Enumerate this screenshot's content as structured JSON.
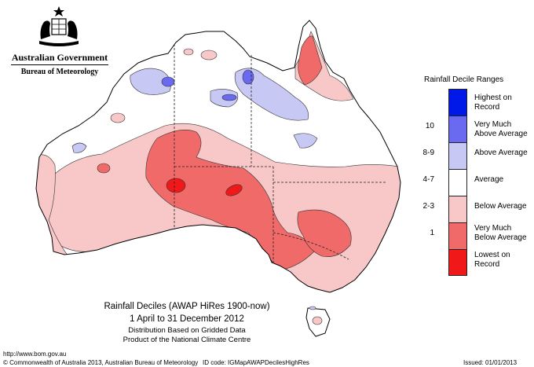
{
  "header": {
    "organisation": "Australian Government",
    "bureau": "Bureau of Meteorology"
  },
  "map": {
    "region": "Australia",
    "colors": {
      "highest_on_record": "#0018e8",
      "very_much_above": "#6a6af0",
      "above": "#c8c8f5",
      "average": "#ffffff",
      "below": "#f8c8c8",
      "very_much_below": "#f06a6a",
      "lowest_on_record": "#f01818"
    }
  },
  "legend": {
    "title": "Rainfall Decile Ranges",
    "items": [
      {
        "range": "",
        "label": "Highest on Record",
        "color": "#0018e8"
      },
      {
        "range": "10",
        "label": "Very Much Above Average",
        "color": "#6a6af0"
      },
      {
        "range": "8-9",
        "label": "Above Average",
        "color": "#c8c8f5"
      },
      {
        "range": "4-7",
        "label": "Average",
        "color": "#ffffff"
      },
      {
        "range": "2-3",
        "label": "Below Average",
        "color": "#f8c8c8"
      },
      {
        "range": "1",
        "label": "Very Much Below Average",
        "color": "#f06a6a"
      },
      {
        "range": "",
        "label": "Lowest on Record",
        "color": "#f01818"
      }
    ]
  },
  "title": {
    "line1": "Rainfall Deciles (AWAP HiRes 1900-now)",
    "line2": "1 April to 31 December 2012",
    "line3": "Distribution Based on Gridded Data",
    "line4": "Product of the National Climate Centre"
  },
  "footer": {
    "url": "http://www.bom.gov.au",
    "copyright": "© Commonwealth of Australia 2013, Australian Bureau of Meteorology",
    "id_code": "ID code: IGMapAWAPDecilesHighRes",
    "issued": "Issued: 01/01/2013"
  }
}
